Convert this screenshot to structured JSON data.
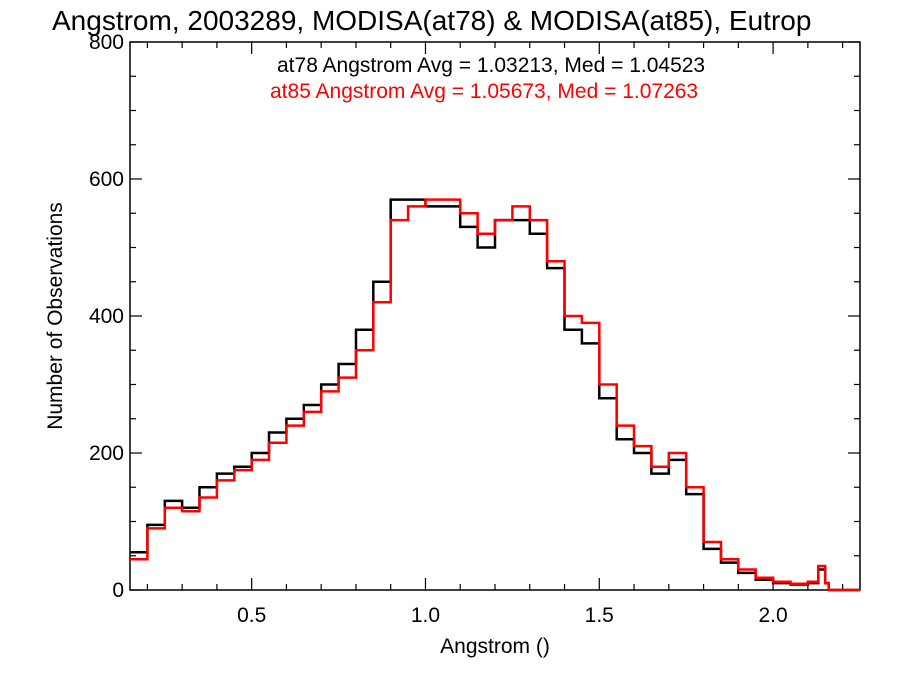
{
  "chart_data": {
    "type": "line",
    "step": true,
    "title": "Angstrom, 2003289, MODISA(at78) & MODISA(at85), Eutrop",
    "xlabel": "Angstrom ()",
    "ylabel": "Number of Observations",
    "xlim": [
      0.15,
      2.25
    ],
    "ylim": [
      0,
      800
    ],
    "xticks": [
      0.5,
      1.0,
      1.5,
      2.0
    ],
    "xtick_labels": [
      "0.5",
      "1.0",
      "1.5",
      "2.0"
    ],
    "yticks": [
      0,
      200,
      400,
      600,
      800
    ],
    "ytick_labels": [
      "0",
      "200",
      "400",
      "600",
      "800"
    ],
    "grid": false,
    "legend_position": "top-right",
    "colors": {
      "at78": "#000000",
      "at85": "#ff0000"
    },
    "annotations": [
      {
        "text": "at78 Angstrom Avg = 1.03213, Med = 1.04523",
        "color": "#000000"
      },
      {
        "text": "at85 Angstrom Avg = 1.05673, Med = 1.07263",
        "color": "#ff0000"
      }
    ],
    "x": [
      0.15,
      0.2,
      0.25,
      0.3,
      0.35,
      0.4,
      0.45,
      0.5,
      0.55,
      0.6,
      0.65,
      0.7,
      0.75,
      0.8,
      0.85,
      0.9,
      0.95,
      1.0,
      1.05,
      1.1,
      1.15,
      1.2,
      1.25,
      1.3,
      1.35,
      1.4,
      1.45,
      1.5,
      1.55,
      1.6,
      1.65,
      1.7,
      1.75,
      1.8,
      1.85,
      1.9,
      1.95,
      2.0,
      2.05,
      2.1,
      2.13,
      2.15,
      2.16,
      2.2,
      2.25
    ],
    "series": [
      {
        "name": "at78",
        "values": [
          55,
          95,
          130,
          120,
          150,
          170,
          180,
          200,
          230,
          250,
          270,
          300,
          330,
          380,
          450,
          570,
          570,
          560,
          560,
          530,
          500,
          540,
          540,
          520,
          470,
          380,
          360,
          280,
          220,
          200,
          170,
          190,
          140,
          60,
          40,
          25,
          15,
          10,
          8,
          10,
          30,
          10,
          0,
          0,
          0
        ]
      },
      {
        "name": "at85",
        "values": [
          45,
          90,
          120,
          115,
          135,
          160,
          175,
          190,
          215,
          240,
          260,
          290,
          310,
          350,
          420,
          540,
          560,
          570,
          570,
          550,
          520,
          540,
          560,
          540,
          480,
          400,
          390,
          300,
          240,
          210,
          180,
          200,
          150,
          70,
          45,
          30,
          18,
          12,
          9,
          12,
          35,
          10,
          0,
          0,
          0
        ]
      }
    ]
  }
}
